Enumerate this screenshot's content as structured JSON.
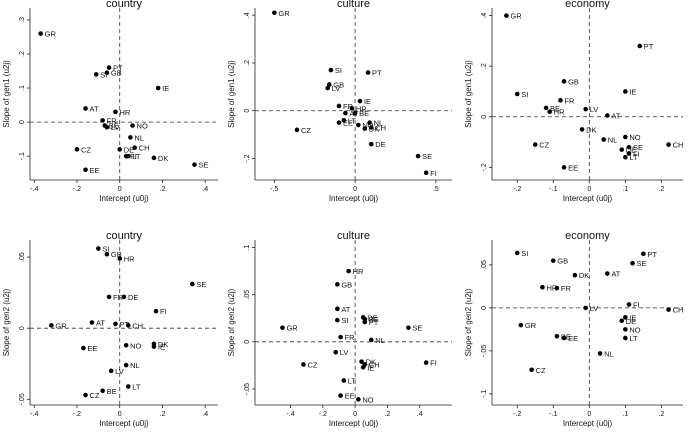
{
  "chart_data": [
    {
      "type": "scatter",
      "title": "country",
      "xlabel": "Intercept (u0j)",
      "ylabel": "Slope of gen1 (u2j)",
      "xlim": [
        -0.42,
        0.46
      ],
      "ylim": [
        -0.17,
        0.335
      ],
      "xticks": [
        -0.4,
        -0.2,
        0,
        0.2,
        0.4
      ],
      "xtick_labels": [
        "-.4",
        "-.2",
        "0",
        ".2",
        ".4"
      ],
      "yticks": [
        -0.1,
        0,
        0.1,
        0.2,
        0.3
      ],
      "ytick_labels": [
        "-.1",
        "0",
        ".1",
        ".2",
        ".3"
      ],
      "points": [
        {
          "label": "GR",
          "x": -0.37,
          "y": 0.26
        },
        {
          "label": "PT",
          "x": -0.05,
          "y": 0.16
        },
        {
          "label": "GB",
          "x": -0.06,
          "y": 0.145
        },
        {
          "label": "SI",
          "x": -0.11,
          "y": 0.14
        },
        {
          "label": "IE",
          "x": 0.18,
          "y": 0.1
        },
        {
          "label": "AT",
          "x": -0.16,
          "y": 0.04
        },
        {
          "label": "HR",
          "x": -0.02,
          "y": 0.03
        },
        {
          "label": "FR",
          "x": -0.08,
          "y": 0.005
        },
        {
          "label": "BE",
          "x": -0.07,
          "y": -0.01
        },
        {
          "label": "LV",
          "x": -0.06,
          "y": -0.015
        },
        {
          "label": "NO",
          "x": 0.06,
          "y": -0.01
        },
        {
          "label": "NL",
          "x": 0.05,
          "y": -0.045
        },
        {
          "label": "CZ",
          "x": -0.2,
          "y": -0.08
        },
        {
          "label": "CH",
          "x": 0.07,
          "y": -0.075
        },
        {
          "label": "DE",
          "x": 0.0,
          "y": -0.08
        },
        {
          "label": "FI",
          "x": 0.03,
          "y": -0.1
        },
        {
          "label": "LT",
          "x": 0.04,
          "y": -0.1
        },
        {
          "label": "DK",
          "x": 0.16,
          "y": -0.105
        },
        {
          "label": "SE",
          "x": 0.35,
          "y": -0.125
        },
        {
          "label": "EE",
          "x": -0.16,
          "y": -0.14
        }
      ]
    },
    {
      "type": "scatter",
      "title": "culture",
      "xlabel": "Intercept (u0j)",
      "ylabel": "Slope of gen1 (u2j)",
      "xlim": [
        -0.62,
        0.6
      ],
      "ylim": [
        -0.29,
        0.43
      ],
      "xticks": [
        -0.5,
        0,
        0.5
      ],
      "xtick_labels": [
        "-.5",
        "0",
        ".5"
      ],
      "yticks": [
        -0.2,
        0,
        0.2,
        0.4
      ],
      "ytick_labels": [
        "-.2",
        "0",
        ".2",
        ".4"
      ],
      "points": [
        {
          "label": "GR",
          "x": -0.5,
          "y": 0.41
        },
        {
          "label": "SI",
          "x": -0.15,
          "y": 0.17
        },
        {
          "label": "PT",
          "x": 0.08,
          "y": 0.16
        },
        {
          "label": "GB",
          "x": -0.16,
          "y": 0.11
        },
        {
          "label": "LV",
          "x": -0.17,
          "y": 0.095
        },
        {
          "label": "IE",
          "x": 0.03,
          "y": 0.04
        },
        {
          "label": "FR",
          "x": -0.1,
          "y": 0.02
        },
        {
          "label": "HR",
          "x": -0.02,
          "y": 0.01
        },
        {
          "label": "BE",
          "x": 0.0,
          "y": -0.01
        },
        {
          "label": "AT",
          "x": -0.06,
          "y": -0.01
        },
        {
          "label": "EE",
          "x": -0.1,
          "y": -0.05
        },
        {
          "label": "LT",
          "x": -0.07,
          "y": -0.04
        },
        {
          "label": "NO",
          "x": 0.02,
          "y": -0.06
        },
        {
          "label": "NL",
          "x": 0.09,
          "y": -0.05
        },
        {
          "label": "CH",
          "x": 0.1,
          "y": -0.07
        },
        {
          "label": "DK",
          "x": 0.06,
          "y": -0.075
        },
        {
          "label": "CZ",
          "x": -0.36,
          "y": -0.08
        },
        {
          "label": "DE",
          "x": 0.1,
          "y": -0.14
        },
        {
          "label": "SE",
          "x": 0.39,
          "y": -0.19
        },
        {
          "label": "FI",
          "x": 0.44,
          "y": -0.26
        }
      ]
    },
    {
      "type": "scatter",
      "title": "economy",
      "xlabel": "Intercept (u0j)",
      "ylabel": "Slope of gen1 (u2j)",
      "xlim": [
        -0.27,
        0.26
      ],
      "ylim": [
        -0.25,
        0.43
      ],
      "xticks": [
        -0.2,
        -0.1,
        0,
        0.1,
        0.2
      ],
      "xtick_labels": [
        "-.2",
        "-.1",
        "0",
        ".1",
        ".2"
      ],
      "yticks": [
        -0.2,
        0,
        0.2,
        0.4
      ],
      "ytick_labels": [
        "-.2",
        "0",
        ".2",
        ".4"
      ],
      "points": [
        {
          "label": "GR",
          "x": -0.23,
          "y": 0.4
        },
        {
          "label": "PT",
          "x": 0.14,
          "y": 0.28
        },
        {
          "label": "GB",
          "x": -0.07,
          "y": 0.14
        },
        {
          "label": "SI",
          "x": -0.2,
          "y": 0.09
        },
        {
          "label": "IE",
          "x": 0.1,
          "y": 0.1
        },
        {
          "label": "FR",
          "x": -0.08,
          "y": 0.065
        },
        {
          "label": "BE",
          "x": -0.12,
          "y": 0.035
        },
        {
          "label": "LV",
          "x": -0.01,
          "y": 0.03
        },
        {
          "label": "HR",
          "x": -0.11,
          "y": 0.02
        },
        {
          "label": "AT",
          "x": 0.05,
          "y": 0.005
        },
        {
          "label": "DK",
          "x": -0.02,
          "y": -0.05
        },
        {
          "label": "NL",
          "x": 0.04,
          "y": -0.09
        },
        {
          "label": "NO",
          "x": 0.1,
          "y": -0.08
        },
        {
          "label": "CZ",
          "x": -0.15,
          "y": -0.11
        },
        {
          "label": "SE",
          "x": 0.11,
          "y": -0.12
        },
        {
          "label": "DE",
          "x": 0.09,
          "y": -0.13
        },
        {
          "label": "FI",
          "x": 0.11,
          "y": -0.145
        },
        {
          "label": "LT",
          "x": 0.1,
          "y": -0.16
        },
        {
          "label": "CH",
          "x": 0.22,
          "y": -0.11
        },
        {
          "label": "EE",
          "x": -0.07,
          "y": -0.2
        }
      ]
    },
    {
      "type": "scatter",
      "title": "country",
      "xlabel": "Intercept (u0j)",
      "ylabel": "Slope of gen2 (u2j)",
      "xlim": [
        -0.42,
        0.46
      ],
      "ylim": [
        -0.054,
        0.062
      ],
      "xticks": [
        -0.4,
        -0.2,
        0,
        0.2,
        0.4
      ],
      "xtick_labels": [
        "-.4",
        "-.2",
        "0",
        ".2",
        ".4"
      ],
      "yticks": [
        -0.05,
        0,
        0.05
      ],
      "ytick_labels": [
        "-.05",
        "0",
        ".05"
      ],
      "points": [
        {
          "label": "SI",
          "x": -0.1,
          "y": 0.056
        },
        {
          "label": "GB",
          "x": -0.06,
          "y": 0.052
        },
        {
          "label": "HR",
          "x": 0.0,
          "y": 0.049
        },
        {
          "label": "SE",
          "x": 0.34,
          "y": 0.031
        },
        {
          "label": "FR",
          "x": -0.05,
          "y": 0.022
        },
        {
          "label": "DE",
          "x": 0.02,
          "y": 0.022
        },
        {
          "label": "FI",
          "x": 0.17,
          "y": 0.012
        },
        {
          "label": "AT",
          "x": -0.13,
          "y": 0.004
        },
        {
          "label": "PT",
          "x": -0.02,
          "y": 0.003
        },
        {
          "label": "CH",
          "x": 0.04,
          "y": 0.002
        },
        {
          "label": "GR",
          "x": -0.32,
          "y": 0.002
        },
        {
          "label": "NO",
          "x": 0.03,
          "y": -0.012
        },
        {
          "label": "DK",
          "x": 0.16,
          "y": -0.011
        },
        {
          "label": "IE",
          "x": 0.16,
          "y": -0.013
        },
        {
          "label": "EE",
          "x": -0.17,
          "y": -0.014
        },
        {
          "label": "NL",
          "x": 0.03,
          "y": -0.026
        },
        {
          "label": "LV",
          "x": -0.04,
          "y": -0.03
        },
        {
          "label": "LT",
          "x": 0.04,
          "y": -0.041
        },
        {
          "label": "BE",
          "x": -0.08,
          "y": -0.044
        },
        {
          "label": "CZ",
          "x": -0.16,
          "y": -0.047
        }
      ]
    },
    {
      "type": "scatter",
      "title": "culture",
      "xlabel": "Intercept (u0j)",
      "ylabel": "Slope of gen2 (u2j)",
      "xlim": [
        -0.62,
        0.6
      ],
      "ylim": [
        -0.067,
        0.108
      ],
      "xticks": [
        -0.4,
        -0.2,
        0,
        0.2,
        0.4
      ],
      "xtick_labels": [
        "-.4",
        "-.2",
        "0",
        ".2",
        ".4"
      ],
      "yticks": [
        -0.05,
        0,
        0.05,
        0.1
      ],
      "ytick_labels": [
        "-.05",
        "0",
        ".05",
        ".1"
      ],
      "points": [
        {
          "label": "HR",
          "x": -0.04,
          "y": 0.075
        },
        {
          "label": "GB",
          "x": -0.11,
          "y": 0.061
        },
        {
          "label": "AT",
          "x": -0.11,
          "y": 0.035
        },
        {
          "label": "DE",
          "x": 0.05,
          "y": 0.026
        },
        {
          "label": "BE",
          "x": 0.06,
          "y": 0.024
        },
        {
          "label": "PT",
          "x": 0.06,
          "y": 0.021
        },
        {
          "label": "SI",
          "x": -0.11,
          "y": 0.023
        },
        {
          "label": "GR",
          "x": -0.45,
          "y": 0.015
        },
        {
          "label": "SE",
          "x": 0.33,
          "y": 0.015
        },
        {
          "label": "FR",
          "x": -0.09,
          "y": 0.005
        },
        {
          "label": "NL",
          "x": 0.1,
          "y": 0.002
        },
        {
          "label": "LV",
          "x": -0.12,
          "y": -0.011
        },
        {
          "label": "CZ",
          "x": -0.32,
          "y": -0.024
        },
        {
          "label": "DK",
          "x": 0.04,
          "y": -0.021
        },
        {
          "label": "CH",
          "x": 0.06,
          "y": -0.024
        },
        {
          "label": "IE",
          "x": 0.05,
          "y": -0.027
        },
        {
          "label": "FI",
          "x": 0.44,
          "y": -0.022
        },
        {
          "label": "LT",
          "x": -0.07,
          "y": -0.041
        },
        {
          "label": "EE",
          "x": -0.09,
          "y": -0.057
        },
        {
          "label": "NO",
          "x": 0.02,
          "y": -0.061
        }
      ]
    },
    {
      "type": "scatter",
      "title": "economy",
      "xlabel": "Intercept (u0j)",
      "ylabel": "Slope of gen2 (u2j)",
      "xlim": [
        -0.27,
        0.26
      ],
      "ylim": [
        -0.113,
        0.079
      ],
      "xticks": [
        -0.2,
        -0.1,
        0,
        0.1,
        0.2
      ],
      "xtick_labels": [
        "-.2",
        "-.1",
        "0",
        ".1",
        ".2"
      ],
      "yticks": [
        -0.1,
        -0.05,
        0,
        0.05
      ],
      "ytick_labels": [
        "-.1",
        "-.05",
        "0",
        ".05"
      ],
      "points": [
        {
          "label": "SI",
          "x": -0.2,
          "y": 0.064
        },
        {
          "label": "PT",
          "x": 0.15,
          "y": 0.063
        },
        {
          "label": "GB",
          "x": -0.1,
          "y": 0.055
        },
        {
          "label": "SE",
          "x": 0.12,
          "y": 0.052
        },
        {
          "label": "AT",
          "x": 0.05,
          "y": 0.04
        },
        {
          "label": "DK",
          "x": -0.04,
          "y": 0.038
        },
        {
          "label": "HR",
          "x": -0.13,
          "y": 0.024
        },
        {
          "label": "FR",
          "x": -0.09,
          "y": 0.023
        },
        {
          "label": "FI",
          "x": 0.11,
          "y": 0.004
        },
        {
          "label": "LV",
          "x": -0.01,
          "y": 0.0
        },
        {
          "label": "CH",
          "x": 0.22,
          "y": -0.002
        },
        {
          "label": "IE",
          "x": 0.1,
          "y": -0.011
        },
        {
          "label": "DE",
          "x": 0.09,
          "y": -0.015
        },
        {
          "label": "NO",
          "x": 0.1,
          "y": -0.025
        },
        {
          "label": "GR",
          "x": -0.19,
          "y": -0.02
        },
        {
          "label": "BE",
          "x": -0.09,
          "y": -0.033
        },
        {
          "label": "EE",
          "x": -0.07,
          "y": -0.035
        },
        {
          "label": "LT",
          "x": 0.1,
          "y": -0.035
        },
        {
          "label": "NL",
          "x": 0.03,
          "y": -0.053
        },
        {
          "label": "CZ",
          "x": -0.16,
          "y": -0.072
        }
      ]
    }
  ]
}
